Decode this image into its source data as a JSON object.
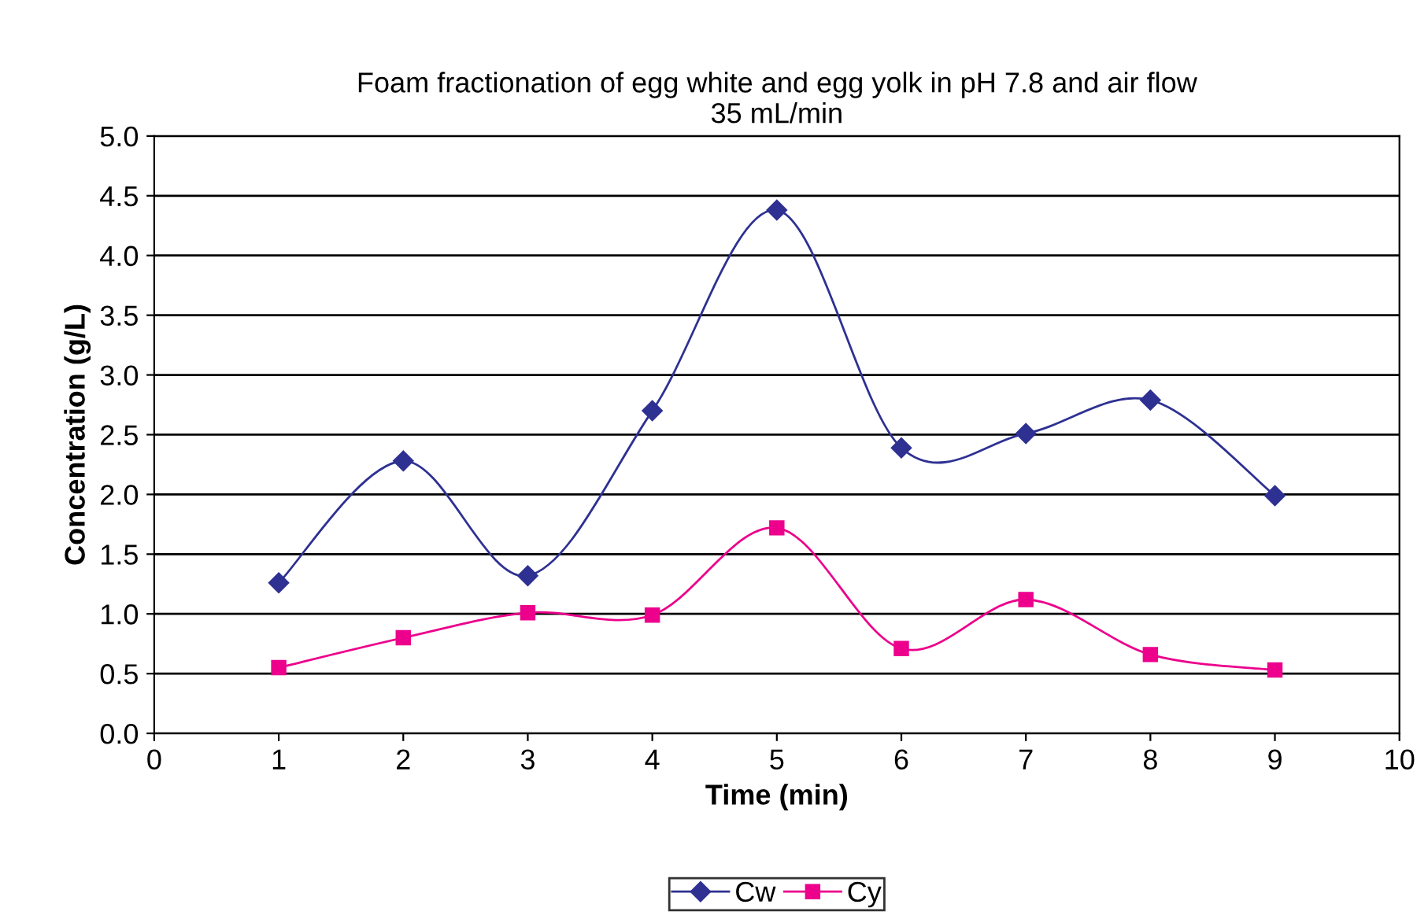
{
  "chart_data": {
    "type": "line",
    "title": "Foam fractionation of egg white and egg yolk in pH 7.8 and air flow\n35 mL/min",
    "xlabel": "Time (min)",
    "ylabel": "Concentration (g/L)",
    "x": [
      1,
      2,
      3,
      4,
      5,
      6,
      7,
      8,
      9
    ],
    "series": [
      {
        "name": "Cw",
        "color": "#2e3192",
        "marker": "diamond",
        "values": [
          1.26,
          2.28,
          1.32,
          2.7,
          4.38,
          2.39,
          2.51,
          2.79,
          1.99
        ]
      },
      {
        "name": "Cy",
        "color": "#ec008c",
        "marker": "square",
        "values": [
          0.55,
          0.8,
          1.01,
          0.99,
          1.72,
          0.71,
          1.12,
          0.66,
          0.53
        ]
      }
    ],
    "xlim": [
      0,
      10
    ],
    "xticks": [
      0,
      1,
      2,
      3,
      4,
      5,
      6,
      7,
      8,
      9,
      10
    ],
    "ylim": [
      0,
      5
    ],
    "yticks": [
      {
        "value": 0,
        "label": "0.0"
      },
      {
        "value": 0.5,
        "label": "0.5"
      },
      {
        "value": 1,
        "label": "1.0"
      },
      {
        "value": 1.5,
        "label": "1.5"
      },
      {
        "value": 2,
        "label": "2.0"
      },
      {
        "value": 2.5,
        "label": "2.5"
      },
      {
        "value": 3,
        "label": "3.0"
      },
      {
        "value": 3.5,
        "label": "3.5"
      },
      {
        "value": 4,
        "label": "4.0"
      },
      {
        "value": 4.5,
        "label": "4.5"
      },
      {
        "value": 5,
        "label": "5.0"
      }
    ],
    "grid": "y",
    "legend": "bottom",
    "line_style": "solid"
  }
}
